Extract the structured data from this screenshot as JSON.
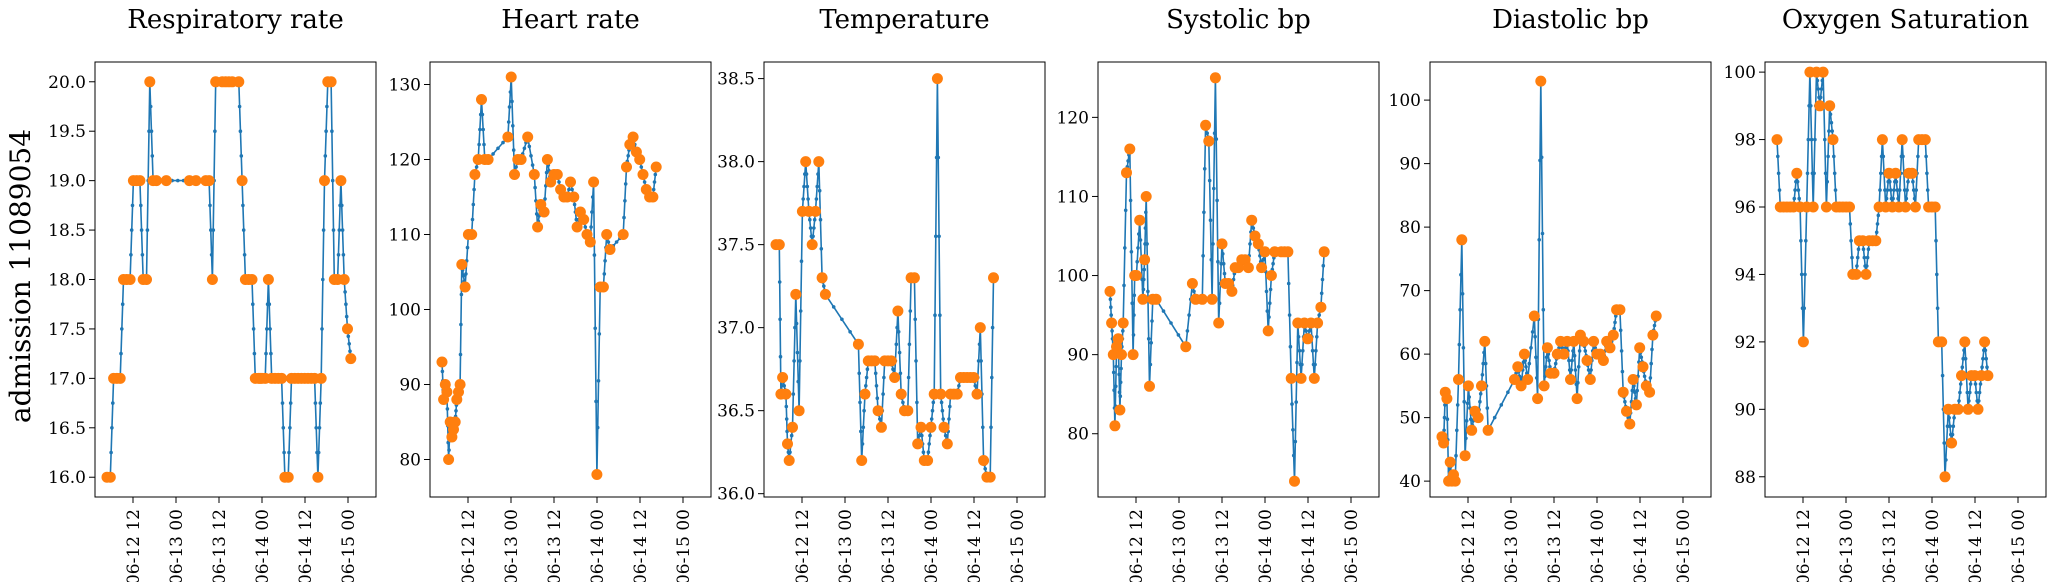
{
  "figure": {
    "row_label": "admission 11089054",
    "x_tick_labels": [
      "06-12 12",
      "06-13 00",
      "06-13 12",
      "06-14 00",
      "06-14 12",
      "06-15 00"
    ],
    "line_color": "#1f77b4",
    "marker_color": "#ff7f0e"
  },
  "chart_data": [
    {
      "type": "line",
      "title": "Respiratory rate",
      "xlim": [
        0,
        78
      ],
      "ylim": [
        15.8,
        20.2
      ],
      "yticks": [
        16.0,
        16.5,
        17.0,
        17.5,
        18.0,
        18.5,
        19.0,
        19.5,
        20.0
      ],
      "ytick_labels": [
        "16.0",
        "16.5",
        "17.0",
        "17.5",
        "18.0",
        "18.5",
        "19.0",
        "19.5",
        "20.0"
      ],
      "x": [
        0,
        1,
        2,
        3,
        4,
        5,
        6,
        7,
        8,
        9,
        10,
        11,
        12,
        13,
        14,
        15,
        18,
        25,
        27,
        30,
        31,
        32,
        33,
        35,
        36,
        37,
        38,
        40,
        41,
        42,
        43,
        44,
        45,
        46,
        46.5,
        47,
        48,
        49,
        50,
        51,
        52,
        53,
        54,
        55,
        56,
        57,
        58,
        59,
        60,
        61,
        62,
        63,
        64,
        65,
        66,
        67,
        68,
        69,
        70,
        71,
        72,
        73,
        74
      ],
      "y": [
        16,
        16,
        17,
        17,
        17,
        18,
        18,
        18,
        19,
        19,
        19,
        18,
        18,
        20,
        19,
        19,
        19,
        19,
        19,
        19,
        19,
        18,
        20,
        20,
        20,
        20,
        20,
        20,
        19,
        18,
        18,
        18,
        17,
        17,
        17,
        17,
        17,
        18,
        17,
        17,
        17,
        17,
        16,
        16,
        17,
        17,
        17,
        17,
        17,
        17,
        17,
        17,
        16,
        17,
        19,
        20,
        20,
        18,
        18,
        19,
        18,
        17.5,
        17.2
      ]
    },
    {
      "type": "line",
      "title": "Heart rate",
      "xlim": [
        0,
        78
      ],
      "ylim": [
        75,
        133
      ],
      "yticks": [
        80,
        90,
        100,
        110,
        120,
        130
      ],
      "ytick_labels": [
        "80",
        "90",
        "100",
        "110",
        "120",
        "130"
      ],
      "x": [
        0,
        0.5,
        1,
        1.5,
        2,
        2.5,
        3,
        3.5,
        4,
        4.5,
        5,
        5.5,
        6,
        7,
        8,
        9,
        10,
        11,
        12,
        13,
        14,
        20,
        21,
        22,
        23,
        24,
        26,
        28,
        29,
        30,
        31,
        32,
        33,
        34,
        35,
        36,
        37,
        38,
        39,
        40,
        41,
        42,
        43,
        44,
        45,
        46,
        47,
        48,
        49,
        50,
        51,
        55,
        56,
        57,
        58,
        59,
        60,
        61,
        62,
        63,
        64,
        65
      ],
      "y": [
        93,
        88,
        90,
        89,
        80,
        85,
        83,
        84,
        85,
        88,
        89,
        90,
        106,
        103,
        110,
        110,
        118,
        120,
        128,
        120,
        120,
        123,
        131,
        118,
        120,
        120,
        123,
        118,
        111,
        114,
        113,
        120,
        117,
        118,
        118,
        116,
        115,
        115,
        117,
        115,
        111,
        113,
        112,
        110,
        109,
        117,
        78,
        103,
        103,
        110,
        108,
        110,
        119,
        122,
        123,
        121,
        120,
        118,
        116,
        115,
        115,
        119
      ]
    },
    {
      "type": "line",
      "title": "Temperature",
      "xlim": [
        0,
        78
      ],
      "ylim": [
        35.98,
        38.6
      ],
      "yticks": [
        36.0,
        36.5,
        37.0,
        37.5,
        38.0,
        38.5
      ],
      "ytick_labels": [
        "36.0",
        "36.5",
        "37.0",
        "37.5",
        "38.0",
        "38.5"
      ],
      "x": [
        0,
        1,
        1.5,
        2,
        3,
        3.5,
        4,
        5,
        6,
        7,
        8,
        9,
        10,
        11,
        12,
        13,
        14,
        15,
        25,
        26,
        27,
        28,
        29,
        30,
        31,
        32,
        33,
        34,
        35,
        36,
        37,
        38,
        39,
        40,
        41,
        42,
        43,
        44,
        45,
        46,
        47,
        48,
        49,
        50,
        51,
        52,
        53,
        54,
        55,
        56,
        57,
        58,
        59,
        60,
        61,
        62,
        63,
        64,
        65,
        66
      ],
      "y": [
        37.5,
        37.5,
        36.6,
        36.7,
        36.6,
        36.3,
        36.2,
        36.4,
        37.2,
        36.5,
        37.7,
        38.0,
        37.7,
        37.5,
        37.7,
        38.0,
        37.3,
        37.2,
        36.9,
        36.2,
        36.6,
        36.8,
        36.8,
        36.8,
        36.5,
        36.4,
        36.8,
        36.8,
        36.8,
        36.7,
        37.1,
        36.6,
        36.5,
        36.5,
        37.3,
        37.3,
        36.3,
        36.4,
        36.2,
        36.2,
        36.4,
        36.6,
        38.5,
        36.6,
        36.4,
        36.3,
        36.6,
        36.6,
        36.6,
        36.7,
        36.7,
        36.7,
        36.7,
        36.7,
        36.6,
        37.0,
        36.2,
        36.1,
        36.1,
        37.3
      ]
    },
    {
      "type": "line",
      "title": "Systolic bp",
      "xlim": [
        0,
        78
      ],
      "ylim": [
        72,
        127
      ],
      "yticks": [
        80,
        90,
        100,
        110,
        120
      ],
      "ytick_labels": [
        "80",
        "90",
        "100",
        "110",
        "120"
      ],
      "x": [
        0,
        0.5,
        1,
        1.5,
        2,
        2.5,
        3,
        3.5,
        4,
        5,
        6,
        7,
        7.5,
        8,
        9,
        10,
        10.5,
        11,
        12,
        13,
        14,
        23,
        25,
        26,
        28,
        29,
        30,
        31,
        32,
        33,
        34,
        35,
        36,
        37,
        38,
        39,
        40,
        41,
        42,
        43,
        44,
        45,
        46,
        47,
        48,
        49,
        50,
        52,
        53,
        54,
        55,
        56,
        57,
        58,
        59,
        60,
        61,
        62,
        63,
        64,
        65
      ],
      "y": [
        98,
        94,
        90,
        81,
        91,
        92,
        83,
        90,
        94,
        113,
        116,
        90,
        100,
        100,
        107,
        97,
        102,
        110,
        86,
        97,
        97,
        91,
        99,
        97,
        97,
        119,
        117,
        97,
        125,
        94,
        104,
        99,
        99,
        98,
        101,
        101,
        102,
        102,
        101,
        107,
        105,
        104,
        101,
        103,
        93,
        100,
        103,
        103,
        103,
        103,
        87,
        74,
        94,
        87,
        94,
        92,
        94,
        87,
        94,
        96,
        103
      ]
    },
    {
      "type": "line",
      "title": "Diastolic bp",
      "xlim": [
        0,
        78
      ],
      "ylim": [
        37.5,
        106
      ],
      "yticks": [
        40,
        50,
        60,
        70,
        80,
        90,
        100
      ],
      "ytick_labels": [
        "40",
        "50",
        "60",
        "70",
        "80",
        "90",
        "100"
      ],
      "x": [
        0,
        0.5,
        1,
        1.5,
        2,
        2.5,
        3,
        3.5,
        4,
        5,
        6,
        7,
        8,
        9,
        10,
        11,
        12,
        13,
        14,
        22,
        23,
        24,
        25,
        26,
        28,
        29,
        30,
        31,
        32,
        33,
        34,
        35,
        36,
        37,
        38,
        39,
        40,
        41,
        42,
        43,
        44,
        45,
        46,
        47,
        48,
        49,
        50,
        51,
        52,
        53,
        54,
        55,
        56,
        57,
        58,
        59,
        60,
        61,
        62,
        63,
        64,
        65
      ],
      "y": [
        47,
        46,
        54,
        53,
        40,
        43,
        40,
        41,
        40,
        56,
        78,
        44,
        55,
        48,
        51,
        50,
        55,
        62,
        48,
        56,
        58,
        55,
        60,
        56,
        66,
        53,
        103,
        55,
        61,
        57,
        57,
        60,
        62,
        60,
        62,
        56,
        62,
        53,
        63,
        62,
        59,
        56,
        62,
        60,
        60,
        59,
        62,
        61,
        63,
        67,
        67,
        54,
        51,
        49,
        56,
        52,
        61,
        58,
        55,
        54,
        63,
        66
      ]
    },
    {
      "type": "line",
      "title": "Oxygen Saturation",
      "xlim": [
        0,
        78
      ],
      "ylim": [
        87.4,
        100.3
      ],
      "yticks": [
        88,
        90,
        92,
        94,
        96,
        98,
        100
      ],
      "ytick_labels": [
        "88",
        "90",
        "92",
        "94",
        "96",
        "98",
        "100"
      ],
      "x": [
        0,
        1,
        2,
        3,
        4,
        5,
        6,
        7,
        8,
        9,
        10,
        11,
        12,
        13,
        14,
        15,
        16,
        17,
        18,
        19,
        20,
        21,
        22,
        23,
        24,
        25,
        26,
        27,
        28,
        29,
        30,
        31,
        32,
        33,
        34,
        35,
        36,
        37,
        38,
        39,
        40,
        41,
        42,
        43,
        44,
        45,
        46,
        47,
        48,
        49,
        50,
        51,
        52,
        53,
        54,
        55,
        56,
        57,
        58,
        59,
        60,
        61,
        62,
        63,
        64
      ],
      "y": [
        98,
        96,
        96,
        96,
        96,
        96,
        97,
        96,
        92,
        96,
        100,
        96,
        100,
        99,
        100,
        96,
        99,
        98,
        96,
        96,
        96,
        96,
        96,
        94,
        94,
        95,
        95,
        94,
        95,
        95,
        95,
        96,
        98,
        96,
        97,
        96,
        97,
        96,
        98,
        96,
        97,
        97,
        96,
        98,
        98,
        98,
        96,
        96,
        96,
        92,
        92,
        88,
        90,
        89,
        90,
        90,
        91,
        92,
        90,
        91,
        91,
        90,
        91,
        92,
        91
      ]
    }
  ]
}
